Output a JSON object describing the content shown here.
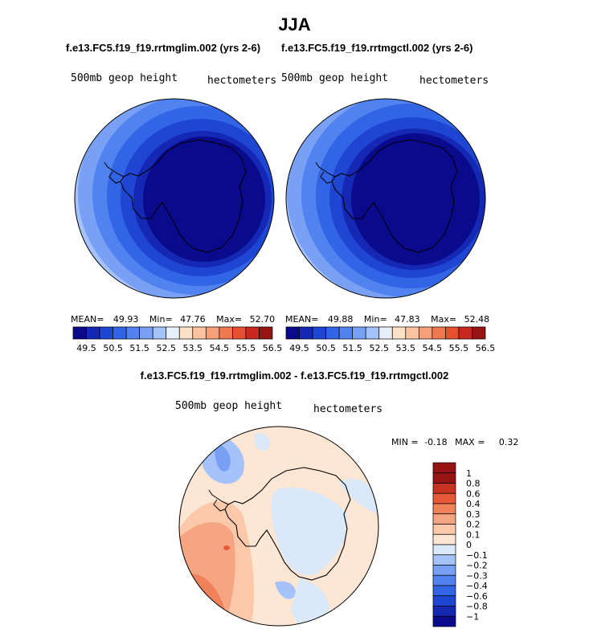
{
  "season_title": "JJA",
  "panels": [
    {
      "case_title": "f.e13.FC5.f19_f19.rrtmglim.002 (yrs 2-6)",
      "var_label": "500mb geop height",
      "units_label": "hectometers",
      "stats": {
        "mean_label": "MEAN=",
        "mean": "49.93",
        "min_label": "Min=",
        "min": "47.76",
        "max_label": "Max=",
        "max": "52.70"
      }
    },
    {
      "case_title": "f.e13.FC5.f19_f19.rrtmgctl.002 (yrs 2-6)",
      "var_label": "500mb geop height",
      "units_label": "hectometers",
      "stats": {
        "mean_label": "MEAN=",
        "mean": "49.88",
        "min_label": "Min=",
        "min": "47.83",
        "max_label": "Max=",
        "max": "52.48"
      }
    }
  ],
  "diff_panel": {
    "case_title": "f.e13.FC5.f19_f19.rrtmglim.002 - f.e13.FC5.f19_f19.rrtmgctl.002",
    "var_label": "500mb geop height",
    "units_label": "hectometers",
    "min_label": "MIN =",
    "min": "-0.18",
    "max_label": "MAX =",
    "max": "0.32"
  },
  "colors": {
    "abs_scale": [
      "#0a0a8c",
      "#1428b4",
      "#1e46d2",
      "#3264e6",
      "#5082f0",
      "#78a0f5",
      "#a5c3fa",
      "#e6f0fa",
      "#fde1c8",
      "#fbc3a0",
      "#f5a078",
      "#f07850",
      "#e65032",
      "#c8281e",
      "#961414"
    ],
    "diff_scale": [
      "#0a0a8c",
      "#1428b4",
      "#1e46d2",
      "#3264e6",
      "#5082f0",
      "#78a0f5",
      "#a5c3fa",
      "#dae8f8",
      "#fde6d4",
      "#fbc8aa",
      "#f5a582",
      "#f0825a",
      "#e65a37",
      "#c83223",
      "#961414"
    ],
    "land_outline": "#000000"
  },
  "chart_data": [
    {
      "type": "heatmap",
      "projection": "south polar stereographic",
      "title": "f.e13.FC5.f19_f19.rrtmglim.002 (yrs 2-6)",
      "variable": "500mb geop height",
      "units": "hectometers",
      "colorbar_ticks": [
        49.5,
        50.5,
        51.5,
        52.5,
        53.5,
        54.5,
        55.5,
        56.5
      ],
      "colorbar_tick_labels": [
        "49.5",
        "50.5",
        "51.5",
        "52.5",
        "53.5",
        "54.5",
        "55.5",
        "56.5"
      ],
      "mean": 49.93,
      "min": 47.76,
      "max": 52.7
    },
    {
      "type": "heatmap",
      "projection": "south polar stereographic",
      "title": "f.e13.FC5.f19_f19.rrtmgctl.002 (yrs 2-6)",
      "variable": "500mb geop height",
      "units": "hectometers",
      "colorbar_ticks": [
        49.5,
        50.5,
        51.5,
        52.5,
        53.5,
        54.5,
        55.5,
        56.5
      ],
      "colorbar_tick_labels": [
        "49.5",
        "50.5",
        "51.5",
        "52.5",
        "53.5",
        "54.5",
        "55.5",
        "56.5"
      ],
      "mean": 49.88,
      "min": 47.83,
      "max": 52.48
    },
    {
      "type": "heatmap",
      "projection": "south polar stereographic",
      "title": "f.e13.FC5.f19_f19.rrtmglim.002 - f.e13.FC5.f19_f19.rrtmgctl.002",
      "variable": "500mb geop height",
      "units": "hectometers",
      "colorbar_levels": [
        1,
        0.8,
        0.6,
        0.4,
        0.3,
        0.2,
        0.1,
        0,
        -0.1,
        -0.2,
        -0.3,
        -0.4,
        -0.6,
        -0.8,
        -1
      ],
      "colorbar_tick_labels": [
        "1",
        "0.8",
        "0.6",
        "0.4",
        "0.3",
        "0.2",
        "0.1",
        "0",
        "−0.1",
        "−0.2",
        "−0.3",
        "−0.4",
        "−0.6",
        "−0.8",
        "−1"
      ],
      "min": -0.18,
      "max": 0.32
    }
  ]
}
